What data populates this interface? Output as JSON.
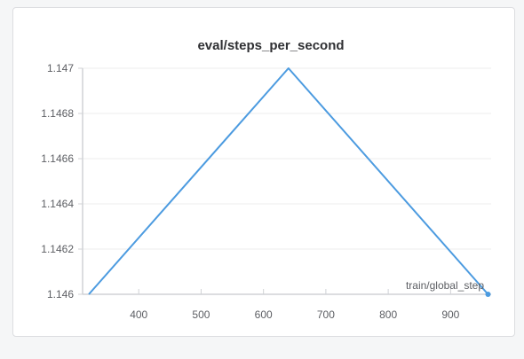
{
  "panel": {
    "title": "eval/steps_per_second"
  },
  "chart_data": {
    "type": "line",
    "title": "eval/steps_per_second",
    "xlabel": "train/global_step",
    "ylabel": "",
    "xlim": [
      310,
      965
    ],
    "ylim": [
      1.146,
      1.147
    ],
    "x_ticks": [
      400,
      500,
      600,
      700,
      800,
      900
    ],
    "x_tick_labels": [
      "400",
      "500",
      "600",
      "700",
      "800",
      "900"
    ],
    "y_ticks": [
      1.146,
      1.1462,
      1.1464,
      1.1466,
      1.1468,
      1.147
    ],
    "y_tick_labels": [
      "1.146",
      "1.1462",
      "1.1464",
      "1.1466",
      "1.1468",
      "1.147"
    ],
    "grid": true,
    "series": [
      {
        "color": "#4c9be0",
        "x": [
          320,
          640,
          960
        ],
        "y": [
          1.146,
          1.147,
          1.146
        ]
      }
    ]
  }
}
